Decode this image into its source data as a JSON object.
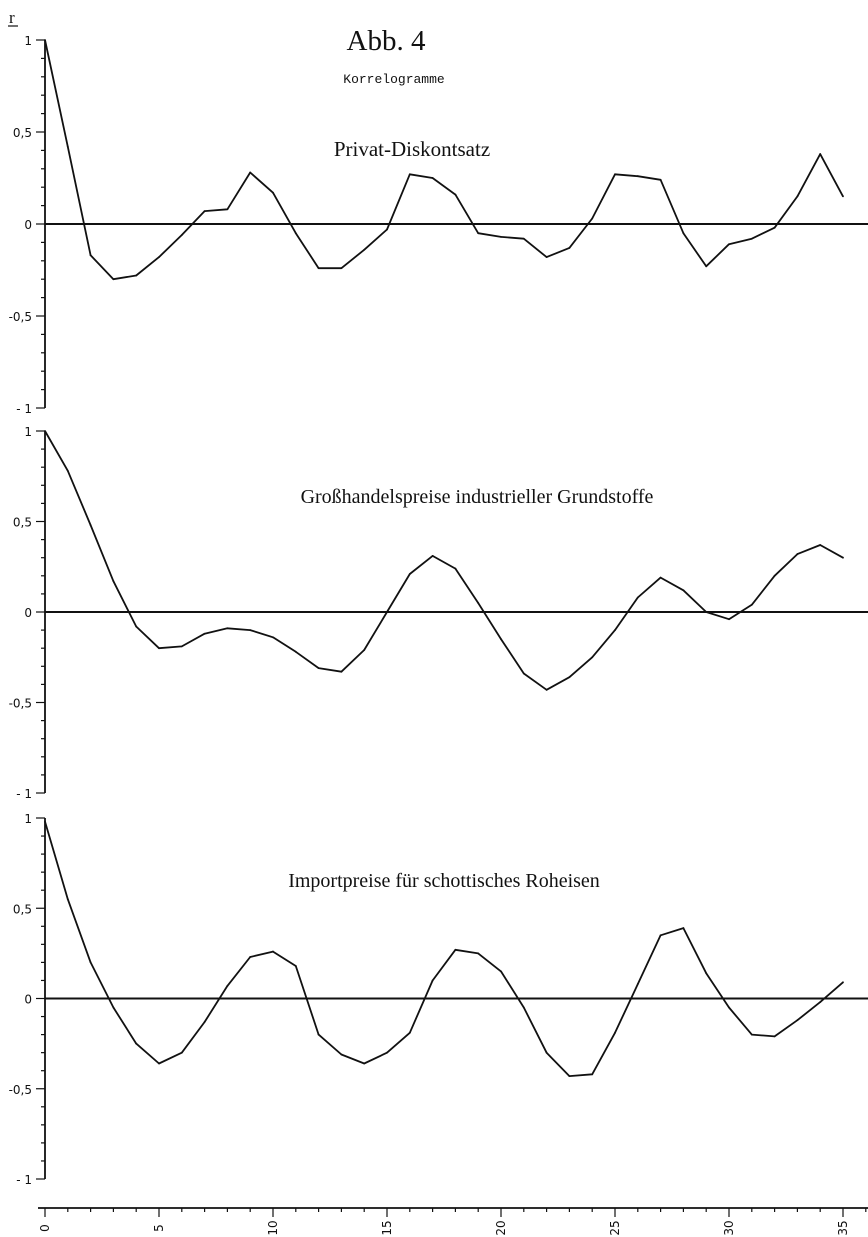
{
  "figure": {
    "title": "Abb. 4",
    "subtitle": "Korrelogramme",
    "ylabel": "r"
  },
  "chart_data": [
    {
      "type": "line",
      "title": "Privat-Diskontsatz",
      "xlabel": "",
      "ylabel": "r",
      "xlim": [
        0,
        36
      ],
      "ylim": [
        -1,
        1
      ],
      "yticks": [
        "1",
        "0,5",
        "0",
        "-0,5",
        "- 1"
      ],
      "xticks": [
        "0",
        "5",
        "10",
        "15",
        "20",
        "25",
        "30",
        "35"
      ],
      "grid": false,
      "x": [
        0,
        1,
        2,
        3,
        4,
        5,
        6,
        7,
        8,
        9,
        10,
        11,
        12,
        13,
        14,
        15,
        16,
        17,
        18,
        19,
        20,
        21,
        22,
        23,
        24,
        25,
        26,
        27,
        28,
        29,
        30,
        31,
        32,
        33,
        34,
        35
      ],
      "series": [
        {
          "values": [
            1.0,
            0.42,
            -0.17,
            -0.3,
            -0.28,
            -0.18,
            -0.06,
            0.07,
            0.08,
            0.28,
            0.17,
            -0.05,
            -0.24,
            -0.24,
            -0.14,
            -0.03,
            0.27,
            0.25,
            0.16,
            -0.05,
            -0.07,
            -0.08,
            -0.18,
            -0.13,
            0.03,
            0.27,
            0.26,
            0.24,
            -0.05,
            -0.23,
            -0.11,
            -0.08,
            -0.02,
            0.15,
            0.38,
            0.15
          ]
        }
      ]
    },
    {
      "type": "line",
      "title": "Großhandelspreise industrieller Grundstoffe",
      "xlabel": "",
      "ylabel": "",
      "xlim": [
        0,
        36
      ],
      "ylim": [
        -1,
        1
      ],
      "yticks": [
        "1",
        "0,5",
        "0",
        "-0,5",
        "- 1"
      ],
      "xticks": [
        "0",
        "5",
        "10",
        "15",
        "20",
        "25",
        "30",
        "35"
      ],
      "grid": false,
      "x": [
        0,
        1,
        2,
        3,
        4,
        5,
        6,
        7,
        8,
        9,
        10,
        11,
        12,
        13,
        14,
        15,
        16,
        17,
        18,
        19,
        20,
        21,
        22,
        23,
        24,
        25,
        26,
        27,
        28,
        29,
        30,
        31,
        32,
        33,
        34,
        35
      ],
      "series": [
        {
          "values": [
            1.0,
            0.78,
            0.48,
            0.17,
            -0.08,
            -0.2,
            -0.19,
            -0.12,
            -0.09,
            -0.1,
            -0.14,
            -0.22,
            -0.31,
            -0.33,
            -0.21,
            0.0,
            0.21,
            0.31,
            0.24,
            0.05,
            -0.15,
            -0.34,
            -0.43,
            -0.36,
            -0.25,
            -0.1,
            0.08,
            0.19,
            0.12,
            0.0,
            -0.04,
            0.04,
            0.2,
            0.32,
            0.37,
            0.3
          ]
        }
      ]
    },
    {
      "type": "line",
      "title": "Importpreise für schottisches Roheisen",
      "xlabel": "",
      "ylabel": "",
      "xlim": [
        0,
        36
      ],
      "ylim": [
        -1,
        1
      ],
      "yticks": [
        "1",
        "0,5",
        "0",
        "-0,5",
        "- 1"
      ],
      "xticks": [
        "0",
        "5",
        "10",
        "15",
        "20",
        "25",
        "30",
        "35"
      ],
      "grid": false,
      "x": [
        0,
        1,
        2,
        3,
        4,
        5,
        6,
        7,
        8,
        9,
        10,
        11,
        12,
        13,
        14,
        15,
        16,
        17,
        18,
        19,
        20,
        21,
        22,
        23,
        24,
        25,
        26,
        27,
        28,
        29,
        30,
        31,
        32,
        33,
        34,
        35
      ],
      "series": [
        {
          "values": [
            0.98,
            0.55,
            0.2,
            -0.05,
            -0.25,
            -0.36,
            -0.3,
            -0.13,
            0.07,
            0.23,
            0.26,
            0.18,
            -0.2,
            -0.31,
            -0.36,
            -0.3,
            -0.19,
            0.1,
            0.27,
            0.25,
            0.15,
            -0.05,
            -0.3,
            -0.43,
            -0.42,
            -0.19,
            0.08,
            0.35,
            0.39,
            0.14,
            -0.05,
            -0.2,
            -0.21,
            -0.12,
            -0.02,
            0.09
          ]
        }
      ]
    }
  ]
}
